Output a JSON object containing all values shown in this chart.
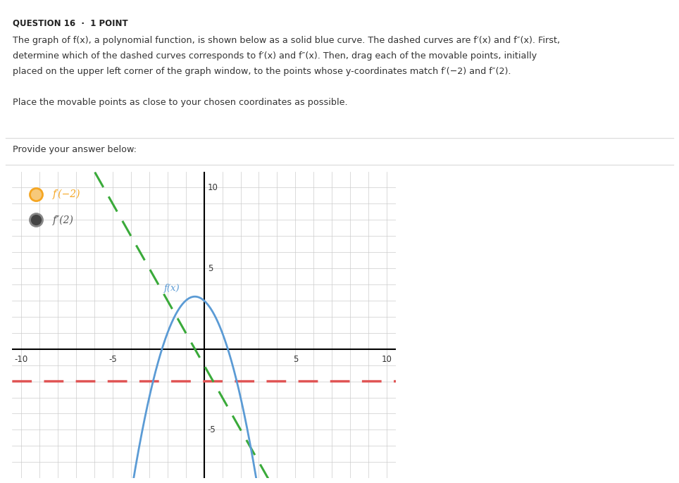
{
  "title": "QUESTION 16  ·  1 POINT",
  "q_line1": "The graph of f(x), a polynomial function, is shown below as a solid blue curve. The dashed curves are f′(x) and f″(x). First,",
  "q_line2": "determine which of the dashed curves corresponds to f′(x) and f″(x). Then, drag each of the movable points, initially",
  "q_line3": "placed on the upper left corner of the graph window, to the points whose y-coordinates match f′(−2) and f″(2).",
  "q_line4": "Place the movable points as close to your chosen coordinates as possible.",
  "answer_label": "Provide your answer below:",
  "bg_color": "#ffffff",
  "text_color": "#333333",
  "title_color": "#222222",
  "sep_color": "#dddddd",
  "graph_bg": "#ffffff",
  "grid_color": "#cccccc",
  "axis_color": "#000000",
  "fx_color": "#5b9bd5",
  "green_color": "#3aaa3a",
  "red_color": "#e05555",
  "orange_color": "#f5a623",
  "orange_face": "#f7c97a",
  "gray_color": "#888888",
  "gray_face": "#444444",
  "label1": "f′(−2)",
  "label2": "f″(2)",
  "fx_label": "f(x)",
  "xlim": [
    -10.5,
    10.5
  ],
  "ylim": [
    -8.0,
    11.0
  ],
  "xtick_vals": [
    -10,
    -5,
    0,
    5,
    10
  ],
  "ytick_vals": [
    -5,
    5,
    10
  ]
}
